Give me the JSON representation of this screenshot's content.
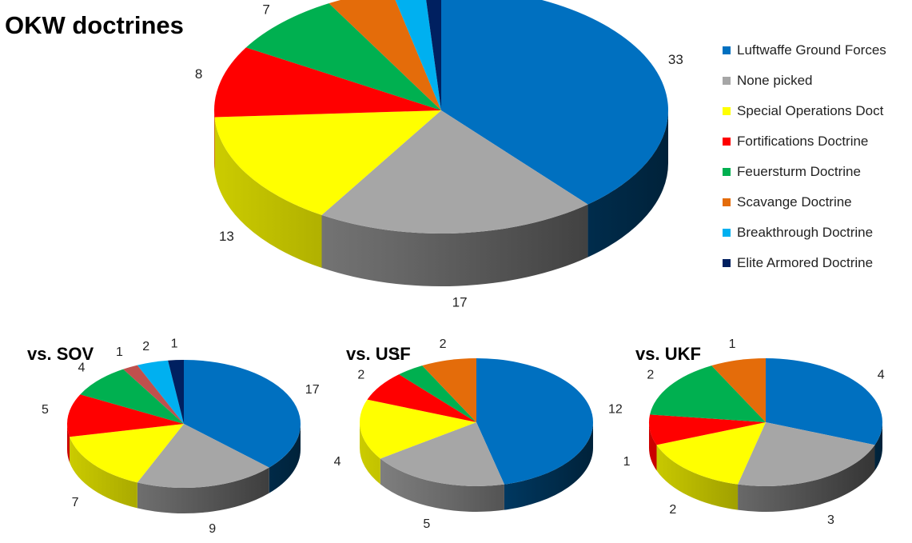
{
  "chart_data": [
    {
      "type": "pie",
      "style": "3d",
      "title": "OKW doctrines",
      "categories": [
        "Luftwaffe Ground Forces",
        "None picked",
        "Special Operations Doct",
        "Fortifications Doctrine",
        "Feuersturm Doctrine",
        "Scavange Doctrine",
        "Breakthrough Doctrine",
        "Elite Armored Doctrine"
      ],
      "values": [
        33,
        17,
        13,
        8,
        7,
        4,
        2,
        1
      ],
      "legend_position": "right"
    },
    {
      "type": "pie",
      "style": "3d",
      "title": "vs. SOV",
      "categories": [
        "Luftwaffe Ground Forces",
        "None picked",
        "Special Operations Doct",
        "Fortifications Doctrine",
        "Feuersturm Doctrine",
        "",
        "Breakthrough Doctrine",
        "Elite Armored Doctrine"
      ],
      "values": [
        17,
        9,
        7,
        5,
        4,
        1,
        2,
        1
      ]
    },
    {
      "type": "pie",
      "style": "3d",
      "title": "vs. USF",
      "categories": [
        "Luftwaffe Ground Forces",
        "None picked",
        "Special Operations Doct",
        "Fortifications Doctrine",
        "Feuersturm Doctrine",
        "Scavange Doctrine"
      ],
      "values": [
        12,
        5,
        4,
        2,
        1,
        2
      ]
    },
    {
      "type": "pie",
      "style": "3d",
      "title": "vs. UKF",
      "categories": [
        "Luftwaffe Ground Forces",
        "None picked",
        "Special Operations Doct",
        "Fortifications Doctrine",
        "Feuersturm Doctrine",
        "Scavange Doctrine"
      ],
      "values": [
        4,
        3,
        2,
        1,
        2,
        1
      ]
    }
  ],
  "colors": {
    "Luftwaffe Ground Forces": "#0070C0",
    "None picked": "#A6A6A6",
    "Special Operations Doct": "#FFFF00",
    "Fortifications Doctrine": "#FF0000",
    "Feuersturm Doctrine": "#00B050",
    "Scavange Doctrine": "#E46C0A",
    "Breakthrough Doctrine": "#00B0F0",
    "Elite Armored Doctrine": "#002060",
    "unlabeled": "#C0504D"
  }
}
